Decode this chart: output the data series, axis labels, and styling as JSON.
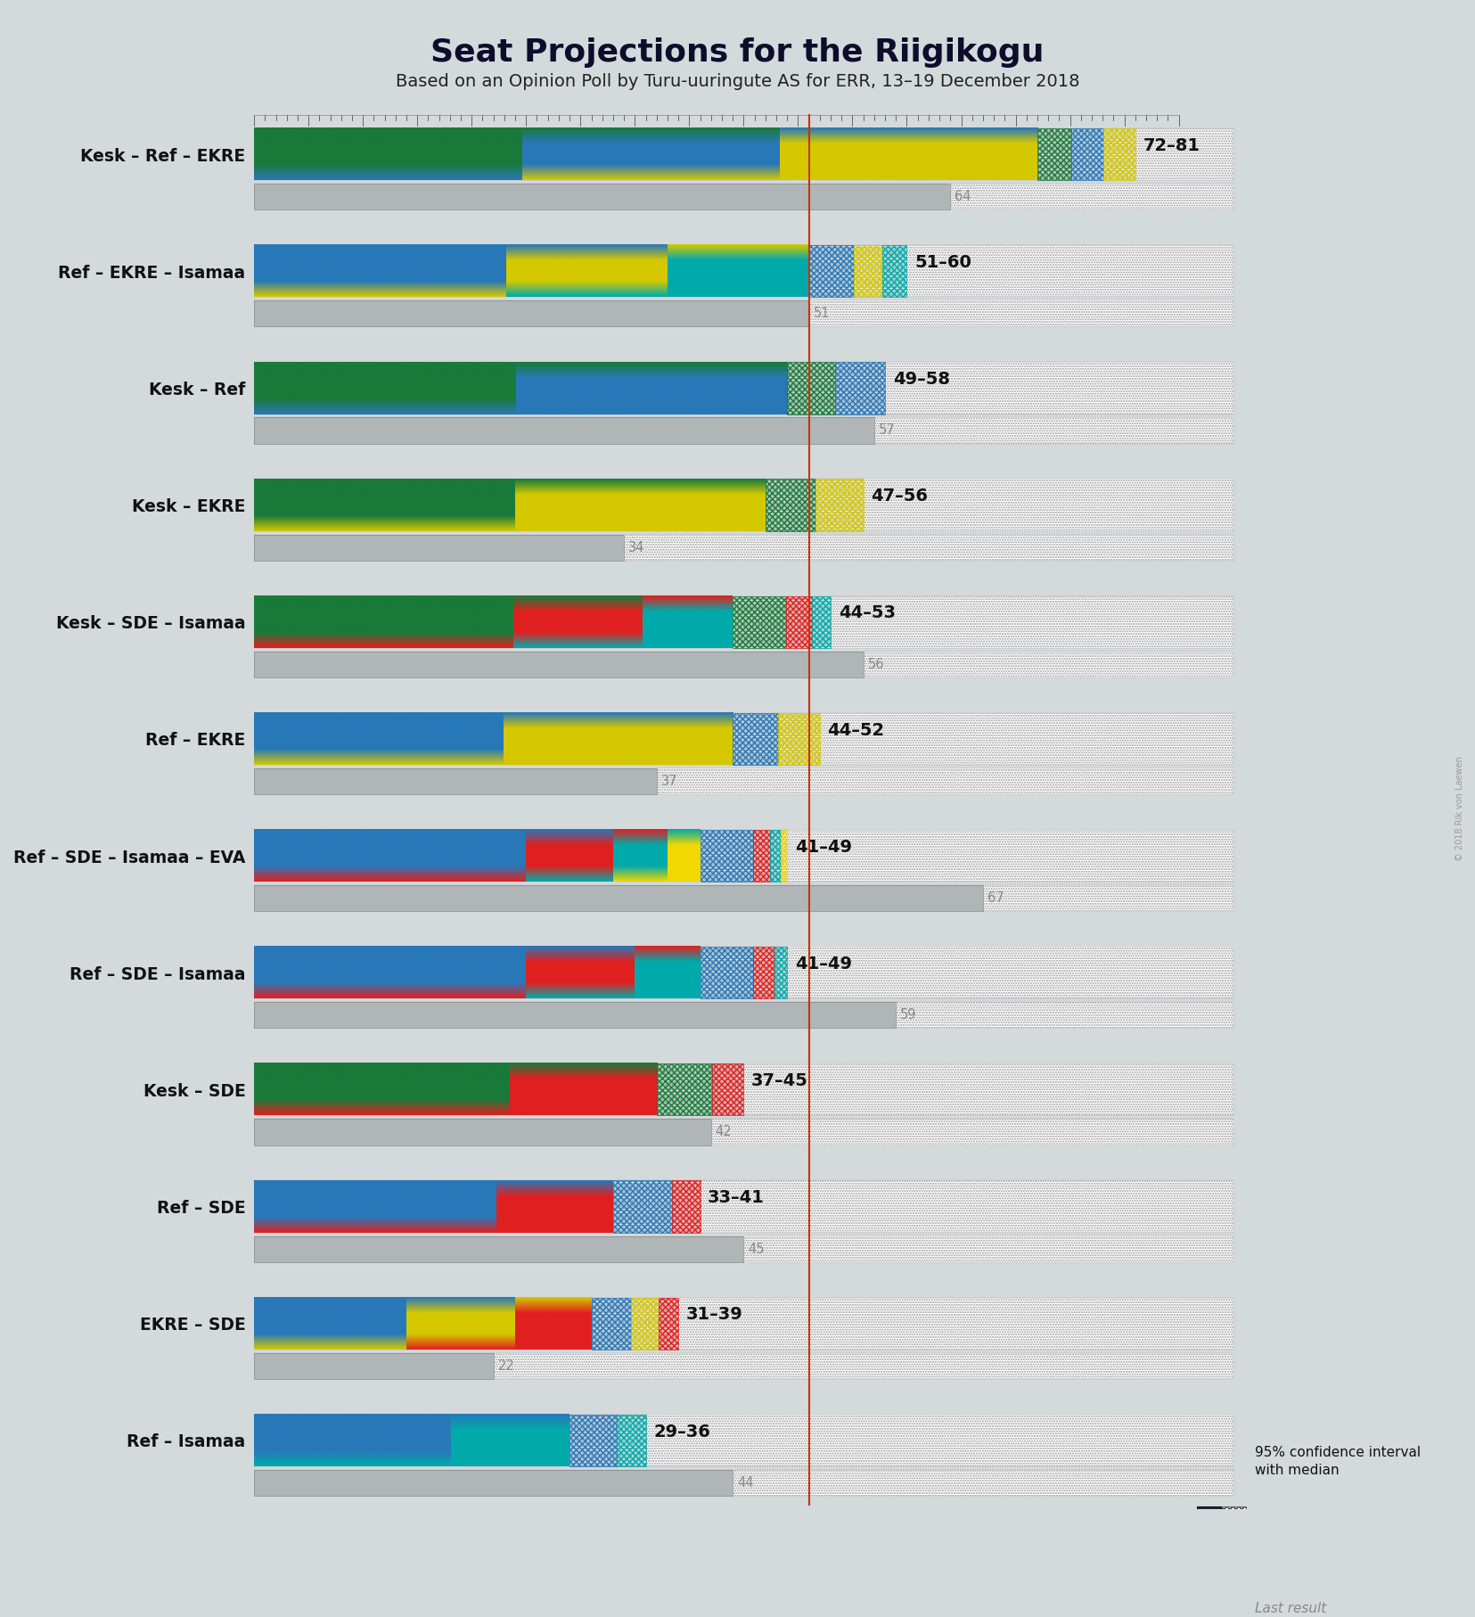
{
  "title": "Seat Projections for the Riigikogu",
  "subtitle": "Based on an Opinion Poll by Turu-uuringute AS for ERR, 13–19 December 2018",
  "majority_line": 51,
  "background_color": "#d4d9dc",
  "coalitions": [
    {
      "name": "Kesk – Ref – EKRE",
      "range_label": "72–81",
      "ci_low": 72,
      "ci_high": 81,
      "last_result": 64,
      "parties": [
        {
          "name": "Kesk",
          "seats": 26,
          "color": "#1a7a3a"
        },
        {
          "name": "Ref",
          "seats": 25,
          "color": "#2878b8"
        },
        {
          "name": "EKRE",
          "seats": 25,
          "color": "#d4c800"
        }
      ]
    },
    {
      "name": "Ref – EKRE – Isamaa",
      "range_label": "51–60",
      "ci_low": 51,
      "ci_high": 60,
      "last_result": 51,
      "parties": [
        {
          "name": "Ref",
          "seats": 25,
          "color": "#2878b8"
        },
        {
          "name": "EKRE",
          "seats": 16,
          "color": "#d4c800"
        },
        {
          "name": "Isamaa",
          "seats": 14,
          "color": "#00aaaa"
        }
      ]
    },
    {
      "name": "Kesk – Ref",
      "range_label": "49–58",
      "ci_low": 49,
      "ci_high": 58,
      "last_result": 57,
      "parties": [
        {
          "name": "Kesk",
          "seats": 26,
          "color": "#1a7a3a"
        },
        {
          "name": "Ref",
          "seats": 27,
          "color": "#2878b8"
        }
      ]
    },
    {
      "name": "Kesk – EKRE",
      "range_label": "47–56",
      "ci_low": 47,
      "ci_high": 56,
      "last_result": 34,
      "parties": [
        {
          "name": "Kesk",
          "seats": 26,
          "color": "#1a7a3a"
        },
        {
          "name": "EKRE",
          "seats": 25,
          "color": "#d4c800"
        }
      ]
    },
    {
      "name": "Kesk – SDE – Isamaa",
      "range_label": "44–53",
      "ci_low": 44,
      "ci_high": 53,
      "last_result": 56,
      "parties": [
        {
          "name": "Kesk",
          "seats": 26,
          "color": "#1a7a3a"
        },
        {
          "name": "SDE",
          "seats": 13,
          "color": "#e02020"
        },
        {
          "name": "Isamaa",
          "seats": 9,
          "color": "#00aaaa"
        }
      ]
    },
    {
      "name": "Ref – EKRE",
      "range_label": "44–52",
      "ci_low": 44,
      "ci_high": 52,
      "last_result": 37,
      "parties": [
        {
          "name": "Ref",
          "seats": 25,
          "color": "#2878b8"
        },
        {
          "name": "EKRE",
          "seats": 23,
          "color": "#d4c800"
        }
      ]
    },
    {
      "name": "Ref – SDE – Isamaa – EVA",
      "range_label": "41–49",
      "ci_low": 41,
      "ci_high": 49,
      "last_result": 67,
      "parties": [
        {
          "name": "Ref",
          "seats": 25,
          "color": "#2878b8"
        },
        {
          "name": "SDE",
          "seats": 8,
          "color": "#e02020"
        },
        {
          "name": "Isamaa",
          "seats": 5,
          "color": "#00aaaa"
        },
        {
          "name": "EVA",
          "seats": 3,
          "color": "#f0d800"
        }
      ]
    },
    {
      "name": "Ref – SDE – Isamaa",
      "range_label": "41–49",
      "ci_low": 41,
      "ci_high": 49,
      "last_result": 59,
      "parties": [
        {
          "name": "Ref",
          "seats": 25,
          "color": "#2878b8"
        },
        {
          "name": "SDE",
          "seats": 10,
          "color": "#e02020"
        },
        {
          "name": "Isamaa",
          "seats": 6,
          "color": "#00aaaa"
        }
      ]
    },
    {
      "name": "Kesk – SDE",
      "range_label": "37–45",
      "ci_low": 37,
      "ci_high": 45,
      "last_result": 42,
      "parties": [
        {
          "name": "Kesk",
          "seats": 26,
          "color": "#1a7a3a"
        },
        {
          "name": "SDE",
          "seats": 15,
          "color": "#e02020"
        }
      ]
    },
    {
      "name": "Ref – SDE",
      "range_label": "33–41",
      "ci_low": 33,
      "ci_high": 41,
      "last_result": 45,
      "parties": [
        {
          "name": "Ref",
          "seats": 25,
          "color": "#2878b8"
        },
        {
          "name": "SDE",
          "seats": 12,
          "color": "#e02020"
        }
      ]
    },
    {
      "name": "EKRE – SDE",
      "range_label": "31–39",
      "ci_low": 31,
      "ci_high": 39,
      "last_result": 22,
      "parties": [
        {
          "name": "Ref",
          "seats": 14,
          "color": "#2878b8"
        },
        {
          "name": "EKRE",
          "seats": 10,
          "color": "#d4c800"
        },
        {
          "name": "SDE",
          "seats": 7,
          "color": "#e02020"
        }
      ]
    },
    {
      "name": "Ref – Isamaa",
      "range_label": "29–36",
      "ci_low": 29,
      "ci_high": 36,
      "last_result": 44,
      "parties": [
        {
          "name": "Ref",
          "seats": 20,
          "color": "#2878b8"
        },
        {
          "name": "Isamaa",
          "seats": 12,
          "color": "#00aaaa"
        }
      ]
    }
  ],
  "x_max": 85,
  "legend_label_ci": "95% confidence interval\nwith median",
  "legend_label_last": "Last result",
  "watermark": "© 2018 Rik von Laewen"
}
